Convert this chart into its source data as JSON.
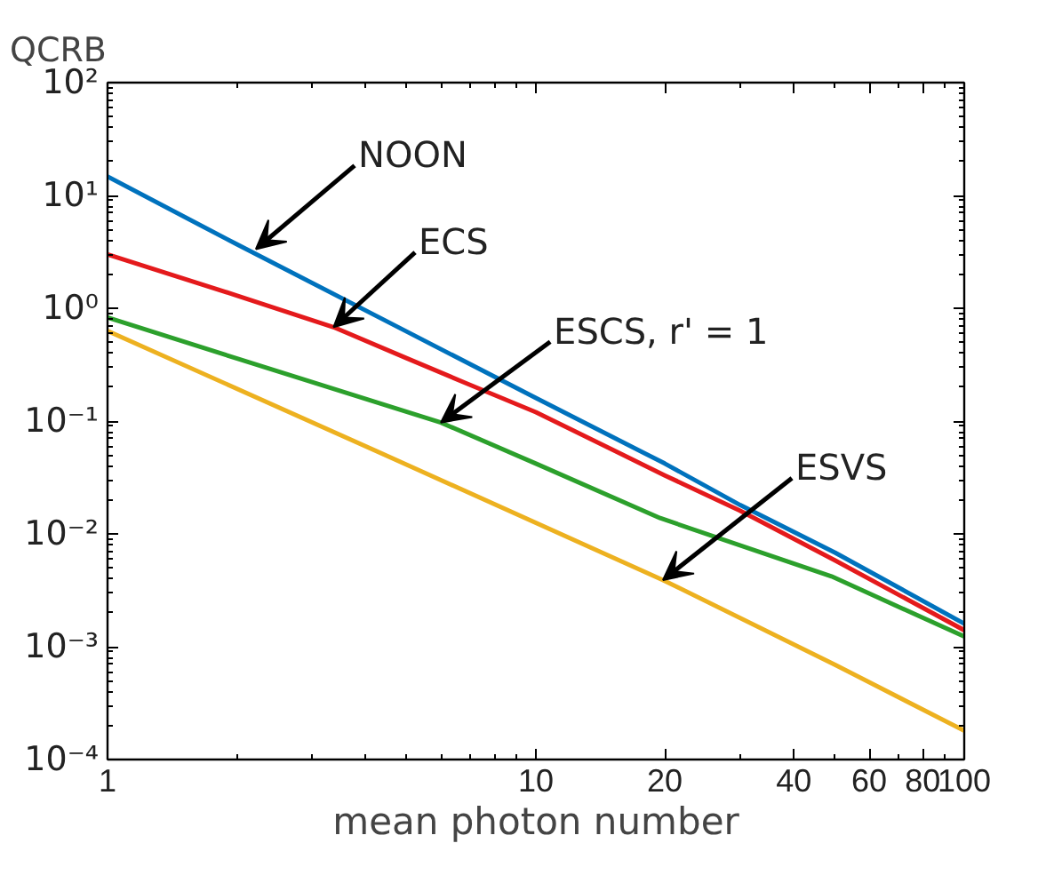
{
  "chart_data": {
    "type": "line",
    "ylabel": "QCRB",
    "xlabel": "mean photon number",
    "log": "xy",
    "grid": false,
    "xlim": [
      1,
      100
    ],
    "xticks": [
      1,
      10,
      20,
      40,
      60,
      80,
      100
    ],
    "ylim": [
      0.0001,
      100
    ],
    "yticks": [
      {
        "value": 0.0001,
        "label": "10⁻⁴"
      },
      {
        "value": 0.001,
        "label": "10⁻³"
      },
      {
        "value": 0.01,
        "label": "10⁻²"
      },
      {
        "value": 0.1,
        "label": "10⁻¹"
      },
      {
        "value": 1,
        "label": "10⁰"
      },
      {
        "value": 10,
        "label": "10¹"
      },
      {
        "value": 100,
        "label": "10²"
      }
    ],
    "series": [
      {
        "color": "#0072bd",
        "x": [
          1,
          2,
          5,
          10,
          20,
          30,
          50,
          100
        ],
        "values": [
          14.7,
          3.7,
          0.62,
          0.16,
          0.042,
          0.018,
          0.0068,
          0.0016
        ]
      },
      {
        "color": "#e41a1c",
        "x": [
          1,
          2,
          3.37,
          5,
          6.8,
          10,
          20,
          30,
          50,
          100
        ],
        "values": [
          3.0,
          1.3,
          0.68,
          0.36,
          0.22,
          0.12,
          0.033,
          0.016,
          0.0058,
          0.0014
        ]
      },
      {
        "color": "#2ca02c",
        "x": [
          1,
          2,
          6,
          10,
          19.5,
          49,
          100
        ],
        "values": [
          0.83,
          0.36,
          0.097,
          0.042,
          0.0138,
          0.0042,
          0.00123
        ]
      },
      {
        "color": "#edb120",
        "x": [
          1,
          5,
          19.8,
          50,
          100
        ],
        "values": [
          0.63,
          0.041,
          0.0039,
          0.00069,
          0.00018
        ]
      }
    ],
    "annotations": [
      {
        "text": "NOON",
        "x": 2.22,
        "y": 3.34
      },
      {
        "text": "ECS",
        "x": 3.37,
        "y": 0.68
      },
      {
        "text": "ESCS, r' = 1",
        "x": 6.0,
        "y": 0.097
      },
      {
        "text": "ESVS",
        "x": 19.8,
        "y": 0.0039
      }
    ]
  }
}
